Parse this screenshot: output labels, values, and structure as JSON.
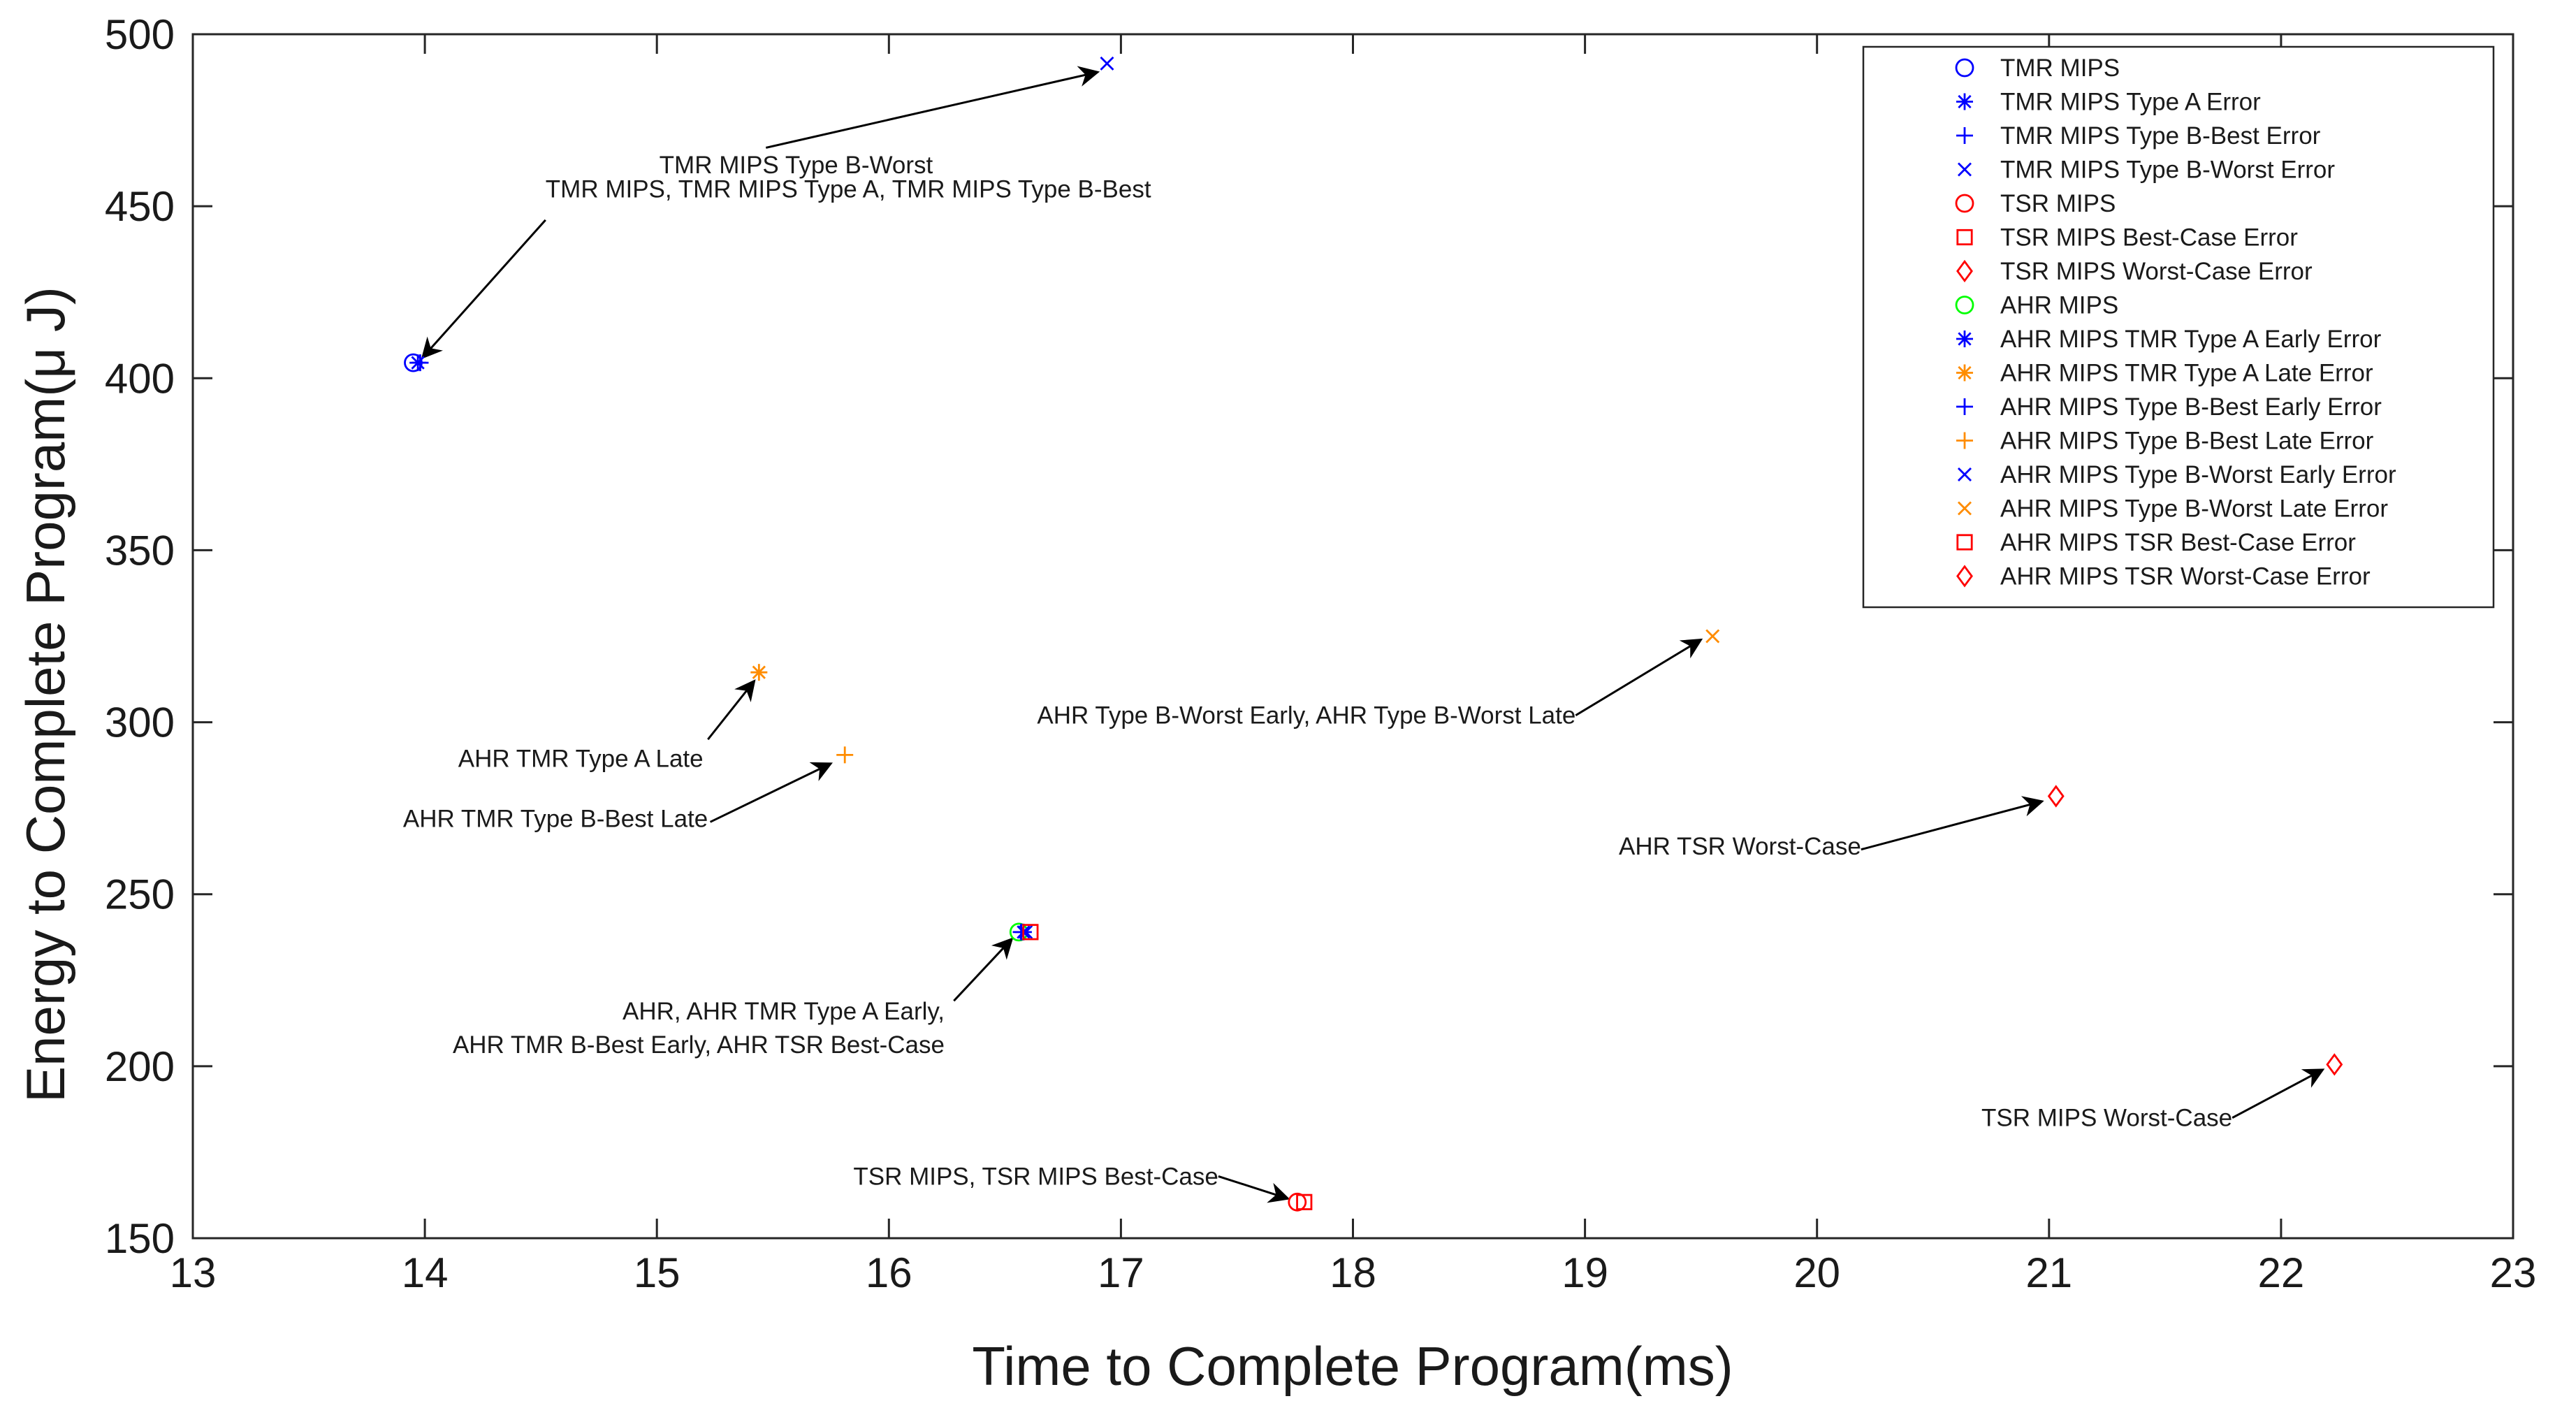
{
  "chart_data": {
    "type": "scatter",
    "title": "",
    "xlabel": "Time to Complete Program(ms)",
    "ylabel": "Energy to Complete Program(μ J)",
    "xlim": [
      13,
      23
    ],
    "ylim": [
      150,
      500
    ],
    "xticks": [
      13,
      14,
      15,
      16,
      17,
      18,
      19,
      20,
      21,
      22,
      23
    ],
    "yticks": [
      150,
      200,
      250,
      300,
      350,
      400,
      450,
      500
    ],
    "grid": false,
    "legend_position": "top-right",
    "colors": {
      "blue": "#0000ff",
      "red": "#ff0000",
      "green": "#00ff00",
      "orange": "#ff8c00",
      "axis": "#262626",
      "arrow": "#000000"
    },
    "series": [
      {
        "name": "TMR MIPS",
        "marker": "circle",
        "color": "#0000ff",
        "points": [
          [
            13.95,
            404.5
          ]
        ]
      },
      {
        "name": "TMR MIPS Type A Error",
        "marker": "asterisk",
        "color": "#0000ff",
        "points": [
          [
            13.97,
            404.5
          ]
        ]
      },
      {
        "name": "TMR MIPS Type B-Best Error",
        "marker": "plus",
        "color": "#0000ff",
        "points": [
          [
            13.98,
            404.5
          ]
        ]
      },
      {
        "name": "TMR MIPS Type B-Worst Error",
        "marker": "cross",
        "color": "#0000ff",
        "points": [
          [
            16.94,
            491.5
          ]
        ]
      },
      {
        "name": "TSR MIPS",
        "marker": "circle",
        "color": "#ff0000",
        "points": [
          [
            17.76,
            160.5
          ]
        ]
      },
      {
        "name": "TSR MIPS Best-Case Error",
        "marker": "square",
        "color": "#ff0000",
        "points": [
          [
            17.79,
            160.5
          ]
        ]
      },
      {
        "name": "TSR MIPS Worst-Case Error",
        "marker": "diamond",
        "color": "#ff0000",
        "points": [
          [
            22.23,
            200.5
          ]
        ]
      },
      {
        "name": "AHR MIPS",
        "marker": "circle",
        "color": "#00ff00",
        "points": [
          [
            16.56,
            239
          ]
        ]
      },
      {
        "name": "AHR MIPS TMR Type A Early Error",
        "marker": "asterisk",
        "color": "#0000ff",
        "points": [
          [
            16.58,
            239
          ]
        ]
      },
      {
        "name": "AHR MIPS TMR Type A Late Error",
        "marker": "asterisk",
        "color": "#ff8c00",
        "points": [
          [
            15.44,
            314.5
          ]
        ]
      },
      {
        "name": "AHR MIPS Type B-Best Early Error",
        "marker": "plus",
        "color": "#0000ff",
        "points": [
          [
            16.57,
            239
          ]
        ]
      },
      {
        "name": "AHR MIPS Type B-Best Late Error",
        "marker": "plus",
        "color": "#ff8c00",
        "points": [
          [
            15.81,
            290.5
          ]
        ]
      },
      {
        "name": "AHR MIPS Type B-Worst Early Error",
        "marker": "cross",
        "color": "#0000ff",
        "points": [
          [
            16.59,
            239
          ]
        ]
      },
      {
        "name": "AHR MIPS Type B-Worst Late Error",
        "marker": "cross",
        "color": "#ff8c00",
        "points": [
          [
            19.55,
            325
          ]
        ]
      },
      {
        "name": "AHR MIPS TSR Best-Case Error",
        "marker": "square",
        "color": "#ff0000",
        "points": [
          [
            16.61,
            239
          ]
        ]
      },
      {
        "name": "AHR MIPS TSR Worst-Case Error",
        "marker": "diamond",
        "color": "#ff0000",
        "points": [
          [
            21.03,
            278.5
          ]
        ]
      }
    ],
    "annotations": [
      {
        "lines": [
          "TMR MIPS Type B-Worst"
        ],
        "text_at": [
          15.6,
          462
        ],
        "anchor": "middle",
        "tail": [
          15.47,
          467
        ],
        "head": [
          16.9,
          489
        ]
      },
      {
        "lines": [
          "TMR MIPS, TMR MIPS Type A, TMR MIPS Type B-Best"
        ],
        "text_at": [
          14.52,
          455
        ],
        "anchor": "start",
        "tail": [
          14.52,
          446
        ],
        "head": [
          13.99,
          406
        ]
      },
      {
        "lines": [
          "AHR TMR Type A Late"
        ],
        "text_at": [
          15.2,
          289.5
        ],
        "anchor": "end",
        "tail": [
          15.22,
          295
        ],
        "head": [
          15.42,
          312
        ]
      },
      {
        "lines": [
          "AHR TMR Type B-Best Late"
        ],
        "text_at": [
          15.22,
          272
        ],
        "anchor": "end",
        "tail": [
          15.23,
          271
        ],
        "head": [
          15.75,
          288
        ]
      },
      {
        "lines": [
          "AHR Type B-Worst Early, AHR Type B-Worst Late"
        ],
        "text_at": [
          18.96,
          302
        ],
        "anchor": "end",
        "tail": [
          18.96,
          302
        ],
        "head": [
          19.5,
          324
        ]
      },
      {
        "lines": [
          "AHR TSR Worst-Case"
        ],
        "text_at": [
          20.19,
          264
        ],
        "anchor": "end",
        "tail": [
          20.19,
          263
        ],
        "head": [
          20.97,
          277
        ]
      },
      {
        "lines": [
          "AHR, AHR TMR Type A Early,",
          "AHR TMR B-Best Early, AHR TSR Best-Case"
        ],
        "text_at": [
          16.24,
          216
        ],
        "anchor": "end",
        "tail": [
          16.28,
          219
        ],
        "head": [
          16.53,
          237
        ]
      },
      {
        "lines": [
          "TSR MIPS Worst-Case"
        ],
        "text_at": [
          21.79,
          185
        ],
        "anchor": "end",
        "tail": [
          21.79,
          185
        ],
        "head": [
          22.18,
          199
        ]
      },
      {
        "lines": [
          "TSR MIPS, TSR MIPS Best-Case"
        ],
        "text_at": [
          17.42,
          168
        ],
        "anchor": "end",
        "tail": [
          17.42,
          168
        ],
        "head": [
          17.72,
          161.5
        ]
      }
    ]
  }
}
